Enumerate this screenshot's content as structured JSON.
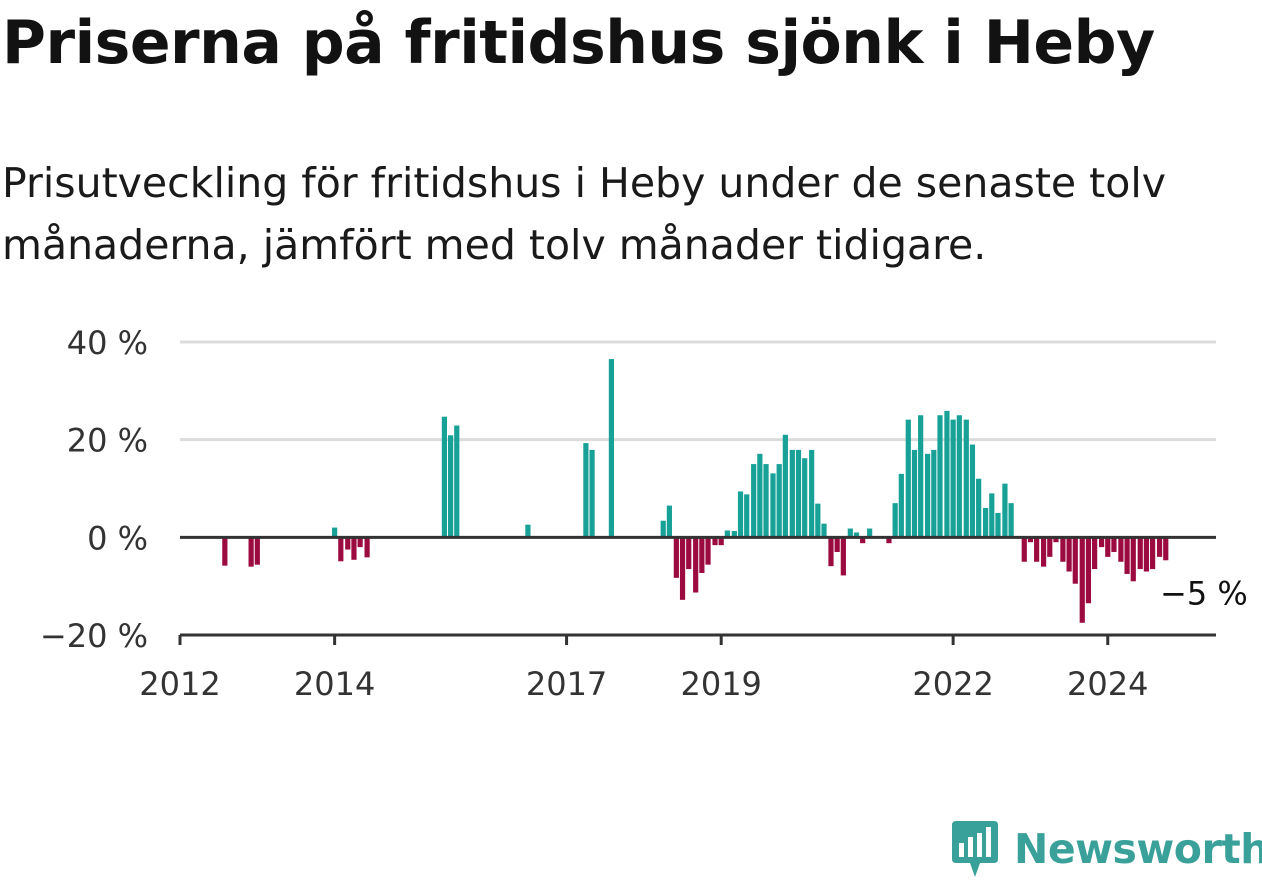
{
  "title": "Priserna på fritidshus sjönk i Heby",
  "subtitle": "Prisutveckling för fritidshus i Heby under de senaste tolv månaderna, jämfört med tolv månader tidigare.",
  "brand": {
    "name": "Newsworthy",
    "icon": "newsworthy-logo-icon"
  },
  "colors": {
    "positive": "#17a197",
    "negative": "#9c0b40",
    "grid": "#dcdcdc",
    "axis": "#333333",
    "text": "#333333"
  },
  "chart_data": {
    "type": "bar",
    "title": "Priserna på fritidshus sjönk i Heby",
    "xlabel": "",
    "ylabel": "",
    "ylim": [
      -20,
      40
    ],
    "yticks": [
      40,
      20,
      0,
      -20
    ],
    "ytick_labels": [
      "40 %",
      "20 %",
      "0 %",
      "−20 %"
    ],
    "xticks": [
      2012,
      2014,
      2017,
      2019,
      2022,
      2024
    ],
    "xtick_labels": [
      "2012",
      "2014",
      "2017",
      "2019",
      "2022",
      "2024"
    ],
    "x_range": [
      2012.0,
      2025.4
    ],
    "annotation": {
      "text": "−5 %",
      "x": 2024.7,
      "y": -4.7
    },
    "series": [
      {
        "name": "Prisutveckling",
        "points": [
          {
            "x": 2012.58,
            "y": -5.8
          },
          {
            "x": 2012.92,
            "y": -6.0
          },
          {
            "x": 2013.0,
            "y": -5.6
          },
          {
            "x": 2014.0,
            "y": 2.0
          },
          {
            "x": 2014.08,
            "y": -4.9
          },
          {
            "x": 2014.17,
            "y": -2.5
          },
          {
            "x": 2014.25,
            "y": -4.6
          },
          {
            "x": 2014.33,
            "y": -2.0
          },
          {
            "x": 2014.42,
            "y": -4.1
          },
          {
            "x": 2015.42,
            "y": 24.7
          },
          {
            "x": 2015.5,
            "y": 20.9
          },
          {
            "x": 2015.58,
            "y": 22.9
          },
          {
            "x": 2016.5,
            "y": 2.6
          },
          {
            "x": 2017.25,
            "y": 19.3
          },
          {
            "x": 2017.33,
            "y": 17.9
          },
          {
            "x": 2017.58,
            "y": 36.5
          },
          {
            "x": 2018.25,
            "y": 3.4
          },
          {
            "x": 2018.33,
            "y": 6.5
          },
          {
            "x": 2018.42,
            "y": -8.3
          },
          {
            "x": 2018.5,
            "y": -12.8
          },
          {
            "x": 2018.58,
            "y": -6.5
          },
          {
            "x": 2018.67,
            "y": -11.3
          },
          {
            "x": 2018.75,
            "y": -7.3
          },
          {
            "x": 2018.83,
            "y": -5.6
          },
          {
            "x": 2018.92,
            "y": -1.6
          },
          {
            "x": 2019.0,
            "y": -1.6
          },
          {
            "x": 2019.08,
            "y": 1.4
          },
          {
            "x": 2019.17,
            "y": 1.3
          },
          {
            "x": 2019.25,
            "y": 9.4
          },
          {
            "x": 2019.33,
            "y": 8.8
          },
          {
            "x": 2019.42,
            "y": 15.0
          },
          {
            "x": 2019.5,
            "y": 17.1
          },
          {
            "x": 2019.58,
            "y": 15.0
          },
          {
            "x": 2019.67,
            "y": 13.1
          },
          {
            "x": 2019.75,
            "y": 15.0
          },
          {
            "x": 2019.83,
            "y": 21.0
          },
          {
            "x": 2019.92,
            "y": 17.9
          },
          {
            "x": 2020.0,
            "y": 17.9
          },
          {
            "x": 2020.08,
            "y": 16.2
          },
          {
            "x": 2020.17,
            "y": 17.9
          },
          {
            "x": 2020.25,
            "y": 6.9
          },
          {
            "x": 2020.33,
            "y": 2.8
          },
          {
            "x": 2020.42,
            "y": -5.9
          },
          {
            "x": 2020.5,
            "y": -3.0
          },
          {
            "x": 2020.58,
            "y": -7.8
          },
          {
            "x": 2020.67,
            "y": 1.8
          },
          {
            "x": 2020.75,
            "y": 1.0
          },
          {
            "x": 2020.83,
            "y": -1.2
          },
          {
            "x": 2020.92,
            "y": 1.8
          },
          {
            "x": 2021.17,
            "y": -1.2
          },
          {
            "x": 2021.25,
            "y": 7.0
          },
          {
            "x": 2021.33,
            "y": 13.0
          },
          {
            "x": 2021.42,
            "y": 24.1
          },
          {
            "x": 2021.5,
            "y": 17.9
          },
          {
            "x": 2021.58,
            "y": 25.0
          },
          {
            "x": 2021.67,
            "y": 17.1
          },
          {
            "x": 2021.75,
            "y": 17.9
          },
          {
            "x": 2021.83,
            "y": 25.0
          },
          {
            "x": 2021.92,
            "y": 25.9
          },
          {
            "x": 2022.0,
            "y": 24.1
          },
          {
            "x": 2022.08,
            "y": 25.0
          },
          {
            "x": 2022.17,
            "y": 24.1
          },
          {
            "x": 2022.25,
            "y": 19.0
          },
          {
            "x": 2022.33,
            "y": 12.0
          },
          {
            "x": 2022.42,
            "y": 6.0
          },
          {
            "x": 2022.5,
            "y": 9.0
          },
          {
            "x": 2022.58,
            "y": 5.0
          },
          {
            "x": 2022.67,
            "y": 11.0
          },
          {
            "x": 2022.75,
            "y": 7.0
          },
          {
            "x": 2022.92,
            "y": -5.0
          },
          {
            "x": 2023.0,
            "y": -1.0
          },
          {
            "x": 2023.08,
            "y": -5.0
          },
          {
            "x": 2023.17,
            "y": -6.0
          },
          {
            "x": 2023.25,
            "y": -4.0
          },
          {
            "x": 2023.33,
            "y": -1.0
          },
          {
            "x": 2023.42,
            "y": -5.0
          },
          {
            "x": 2023.5,
            "y": -7.0
          },
          {
            "x": 2023.58,
            "y": -9.5
          },
          {
            "x": 2023.67,
            "y": -17.5
          },
          {
            "x": 2023.75,
            "y": -13.5
          },
          {
            "x": 2023.83,
            "y": -6.5
          },
          {
            "x": 2023.92,
            "y": -2.0
          },
          {
            "x": 2024.0,
            "y": -4.0
          },
          {
            "x": 2024.08,
            "y": -3.0
          },
          {
            "x": 2024.17,
            "y": -5.0
          },
          {
            "x": 2024.25,
            "y": -7.5
          },
          {
            "x": 2024.33,
            "y": -9.0
          },
          {
            "x": 2024.42,
            "y": -6.5
          },
          {
            "x": 2024.5,
            "y": -7.0
          },
          {
            "x": 2024.58,
            "y": -6.5
          },
          {
            "x": 2024.67,
            "y": -4.0
          },
          {
            "x": 2024.75,
            "y": -4.7
          }
        ]
      }
    ]
  }
}
